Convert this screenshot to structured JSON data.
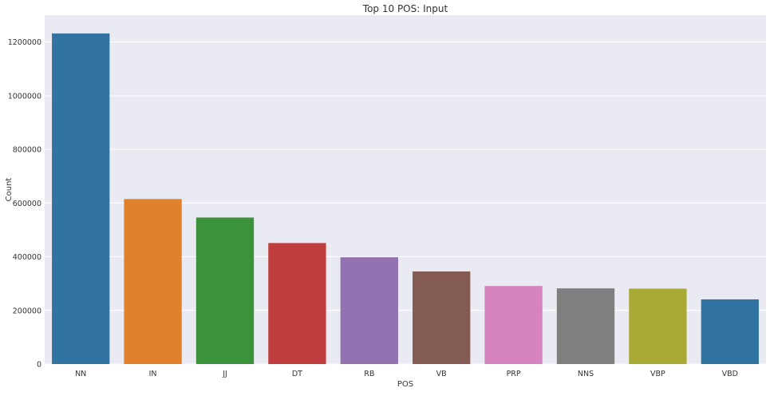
{
  "chart_data": {
    "type": "bar",
    "title": "Top 10 POS: Input",
    "xlabel": "POS",
    "ylabel": "Count",
    "categories": [
      "NN",
      "IN",
      "JJ",
      "DT",
      "RB",
      "VB",
      "PRP",
      "NNS",
      "VBP",
      "VBD"
    ],
    "values": [
      1232000,
      615000,
      546000,
      451000,
      398000,
      345000,
      291000,
      282000,
      281000,
      241000
    ],
    "colors": [
      "#3274a1",
      "#e1812c",
      "#3a923a",
      "#c03d3e",
      "#9372b2",
      "#845b53",
      "#d684bd",
      "#7f7f7f",
      "#a9aa35",
      "#3274a1"
    ],
    "ylim": [
      0,
      1300000
    ],
    "yticks": [
      0,
      200000,
      400000,
      600000,
      800000,
      1000000,
      1200000
    ],
    "ytick_labels": [
      "0",
      "200000",
      "400000",
      "600000",
      "800000",
      "1000000",
      "1200000"
    ],
    "grid": true,
    "background_color": "#eaeaf2",
    "grid_color": "#ffffff"
  }
}
